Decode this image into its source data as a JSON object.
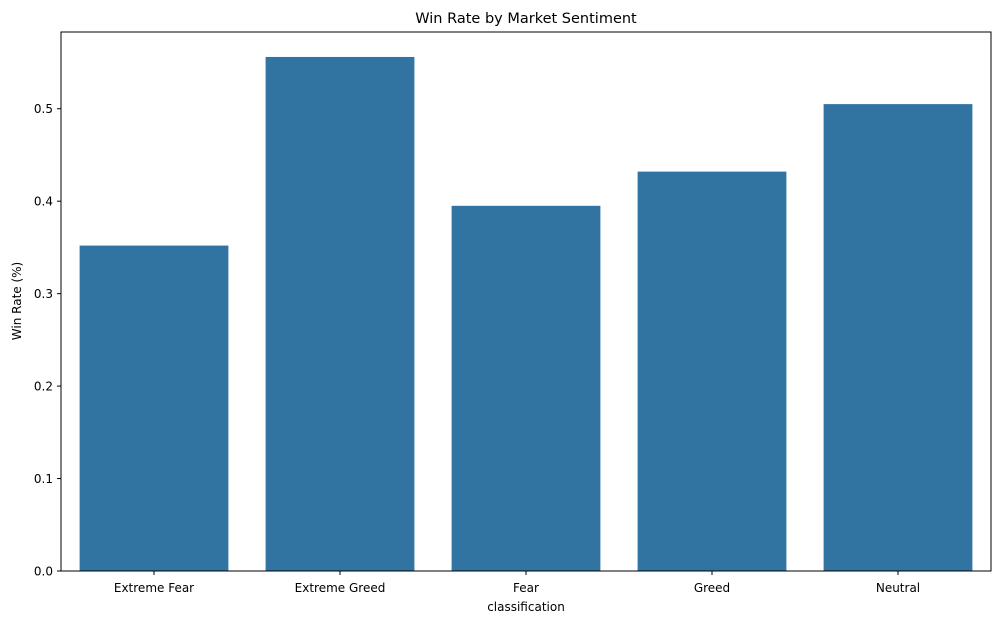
{
  "chart_data": {
    "type": "bar",
    "title": "Win Rate by Market Sentiment",
    "xlabel": "classification",
    "ylabel": "Win Rate (%)",
    "categories": [
      "Extreme Fear",
      "Extreme Greed",
      "Fear",
      "Greed",
      "Neutral"
    ],
    "values": [
      0.352,
      0.556,
      0.395,
      0.432,
      0.505
    ],
    "ylim": [
      0,
      0.583
    ],
    "yticks": [
      0.0,
      0.1,
      0.2,
      0.3,
      0.4,
      0.5
    ],
    "ytick_labels": [
      "0.0",
      "0.1",
      "0.2",
      "0.3",
      "0.4",
      "0.5"
    ],
    "bar_color": "#3274a1",
    "grid": false,
    "legend": "none"
  }
}
